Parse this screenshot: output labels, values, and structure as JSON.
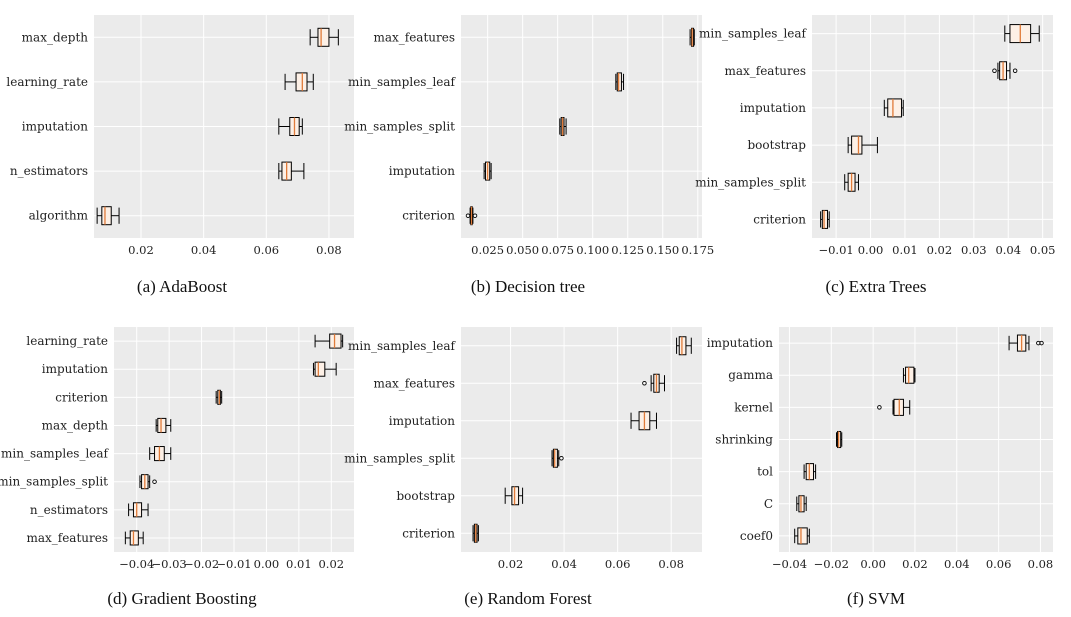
{
  "figure": {
    "panels": [
      {
        "caption": "(a) AdaBoost"
      },
      {
        "caption": "(b) Decision tree"
      },
      {
        "caption": "(c) Extra Trees"
      },
      {
        "caption": "(d) Gradient Boosting"
      },
      {
        "caption": "(e) Random Forest"
      },
      {
        "caption": "(f) SVM"
      }
    ]
  },
  "chart_data": [
    {
      "type": "boxplot",
      "orientation": "horizontal",
      "title": "(a) AdaBoost",
      "xlim": [
        0.005,
        0.088
      ],
      "xticks": [
        0.02,
        0.04,
        0.06,
        0.08
      ],
      "xtick_labels": [
        "0.02",
        "0.04",
        "0.06",
        "0.08"
      ],
      "grid": true,
      "categories": [
        "max_depth",
        "learning_rate",
        "imputation",
        "n_estimators",
        "algorithm"
      ],
      "boxes": [
        {
          "min": 0.074,
          "q1": 0.0765,
          "median": 0.0775,
          "q3": 0.08,
          "max": 0.083,
          "outliers": []
        },
        {
          "min": 0.066,
          "q1": 0.0695,
          "median": 0.0715,
          "q3": 0.073,
          "max": 0.075,
          "outliers": []
        },
        {
          "min": 0.064,
          "q1": 0.0675,
          "median": 0.069,
          "q3": 0.0705,
          "max": 0.0715,
          "outliers": []
        },
        {
          "min": 0.064,
          "q1": 0.065,
          "median": 0.0665,
          "q3": 0.068,
          "max": 0.072,
          "outliers": []
        },
        {
          "min": 0.006,
          "q1": 0.0075,
          "median": 0.0085,
          "q3": 0.0105,
          "max": 0.013,
          "outliers": []
        }
      ]
    },
    {
      "type": "boxplot",
      "orientation": "horizontal",
      "title": "(b) Decision tree",
      "xlim": [
        0.006,
        0.178
      ],
      "xticks": [
        0.025,
        0.05,
        0.075,
        0.1,
        0.125,
        0.15,
        0.175
      ],
      "xtick_labels": [
        "0.025",
        "0.050",
        "0.075",
        "0.100",
        "0.125",
        "0.150",
        "0.175"
      ],
      "grid": true,
      "categories": [
        "max_features",
        "min_samples_leaf",
        "min_samples_split",
        "imputation",
        "criterion"
      ],
      "boxes": [
        {
          "min": 0.1695,
          "q1": 0.1705,
          "median": 0.171,
          "q3": 0.172,
          "max": 0.1725,
          "outliers": []
        },
        {
          "min": 0.1165,
          "q1": 0.1175,
          "median": 0.1185,
          "q3": 0.1205,
          "max": 0.122,
          "outliers": []
        },
        {
          "min": 0.0765,
          "q1": 0.0775,
          "median": 0.0785,
          "q3": 0.0795,
          "max": 0.081,
          "outliers": []
        },
        {
          "min": 0.0225,
          "q1": 0.0235,
          "median": 0.025,
          "q3": 0.0265,
          "max": 0.0275,
          "outliers": []
        },
        {
          "min": 0.0125,
          "q1": 0.013,
          "median": 0.0135,
          "q3": 0.014,
          "max": 0.0145,
          "outliers": [
            0.011,
            0.016
          ]
        }
      ]
    },
    {
      "type": "boxplot",
      "orientation": "horizontal",
      "title": "(c) Extra Trees",
      "xlim": [
        -0.017,
        0.053
      ],
      "xticks": [
        -0.01,
        0.0,
        0.01,
        0.02,
        0.03,
        0.04,
        0.05
      ],
      "xtick_labels": [
        "−0.01",
        "0.00",
        "0.01",
        "0.02",
        "0.03",
        "0.04",
        "0.05"
      ],
      "grid": true,
      "categories": [
        "min_samples_leaf",
        "max_features",
        "imputation",
        "bootstrap",
        "min_samples_split",
        "criterion"
      ],
      "boxes": [
        {
          "min": 0.039,
          "q1": 0.0405,
          "median": 0.0435,
          "q3": 0.0465,
          "max": 0.049,
          "outliers": []
        },
        {
          "min": 0.037,
          "q1": 0.0375,
          "median": 0.0385,
          "q3": 0.0395,
          "max": 0.0405,
          "outliers": [
            0.036,
            0.042
          ]
        },
        {
          "min": 0.004,
          "q1": 0.005,
          "median": 0.0065,
          "q3": 0.009,
          "max": 0.0095,
          "outliers": []
        },
        {
          "min": -0.0065,
          "q1": -0.0055,
          "median": -0.0035,
          "q3": -0.0025,
          "max": 0.002,
          "outliers": []
        },
        {
          "min": -0.0075,
          "q1": -0.0065,
          "median": -0.0055,
          "q3": -0.0045,
          "max": -0.0035,
          "outliers": []
        },
        {
          "min": -0.0145,
          "q1": -0.014,
          "median": -0.0135,
          "q3": -0.0125,
          "max": -0.012,
          "outliers": []
        }
      ]
    },
    {
      "type": "boxplot",
      "orientation": "horizontal",
      "title": "(d) Gradient Boosting",
      "xlim": [
        -0.047,
        0.027
      ],
      "xticks": [
        -0.04,
        -0.03,
        -0.02,
        -0.01,
        0.0,
        0.01,
        0.02
      ],
      "xtick_labels": [
        "−0.04",
        "−0.03",
        "−0.02",
        "−0.01",
        "0.00",
        "0.01",
        "0.02"
      ],
      "grid": true,
      "categories": [
        "learning_rate",
        "imputation",
        "criterion",
        "max_depth",
        "min_samples_leaf",
        "min_samples_split",
        "n_estimators",
        "max_features"
      ],
      "boxes": [
        {
          "min": 0.015,
          "q1": 0.0195,
          "median": 0.021,
          "q3": 0.023,
          "max": 0.0235,
          "outliers": []
        },
        {
          "min": 0.0145,
          "q1": 0.015,
          "median": 0.016,
          "q3": 0.018,
          "max": 0.0215,
          "outliers": []
        },
        {
          "min": -0.0155,
          "q1": -0.015,
          "median": -0.0145,
          "q3": -0.0142,
          "max": -0.0138,
          "outliers": []
        },
        {
          "min": -0.034,
          "q1": -0.0335,
          "median": -0.0325,
          "q3": -0.031,
          "max": -0.0295,
          "outliers": []
        },
        {
          "min": -0.036,
          "q1": -0.0345,
          "median": -0.033,
          "q3": -0.0315,
          "max": -0.0295,
          "outliers": []
        },
        {
          "min": -0.039,
          "q1": -0.0385,
          "median": -0.0375,
          "q3": -0.0365,
          "max": -0.036,
          "outliers": [
            -0.0345
          ]
        },
        {
          "min": -0.0425,
          "q1": -0.041,
          "median": -0.04,
          "q3": -0.0385,
          "max": -0.0365,
          "outliers": []
        },
        {
          "min": -0.0435,
          "q1": -0.042,
          "median": -0.041,
          "q3": -0.0395,
          "max": -0.038,
          "outliers": []
        }
      ]
    },
    {
      "type": "boxplot",
      "orientation": "horizontal",
      "title": "(e) Random Forest",
      "xlim": [
        0.0015,
        0.0915
      ],
      "xticks": [
        0.02,
        0.04,
        0.06,
        0.08
      ],
      "xtick_labels": [
        "0.02",
        "0.04",
        "0.06",
        "0.08"
      ],
      "grid": true,
      "categories": [
        "min_samples_leaf",
        "max_features",
        "imputation",
        "min_samples_split",
        "bootstrap",
        "criterion"
      ],
      "boxes": [
        {
          "min": 0.082,
          "q1": 0.083,
          "median": 0.084,
          "q3": 0.0855,
          "max": 0.0875,
          "outliers": []
        },
        {
          "min": 0.0725,
          "q1": 0.0735,
          "median": 0.0745,
          "q3": 0.0755,
          "max": 0.0775,
          "outliers": [
            0.07
          ]
        },
        {
          "min": 0.065,
          "q1": 0.068,
          "median": 0.07,
          "q3": 0.072,
          "max": 0.0745,
          "outliers": []
        },
        {
          "min": 0.0355,
          "q1": 0.036,
          "median": 0.0365,
          "q3": 0.0375,
          "max": 0.038,
          "outliers": [
            0.039
          ]
        },
        {
          "min": 0.018,
          "q1": 0.0205,
          "median": 0.0215,
          "q3": 0.023,
          "max": 0.0245,
          "outliers": []
        },
        {
          "min": 0.006,
          "q1": 0.0065,
          "median": 0.007,
          "q3": 0.0075,
          "max": 0.008,
          "outliers": []
        }
      ]
    },
    {
      "type": "boxplot",
      "orientation": "horizontal",
      "title": "(f) SVM",
      "xlim": [
        -0.045,
        0.086
      ],
      "xticks": [
        -0.04,
        -0.02,
        0.0,
        0.02,
        0.04,
        0.06,
        0.08
      ],
      "xtick_labels": [
        "−0.04",
        "−0.02",
        "0.00",
        "0.02",
        "0.04",
        "0.06",
        "0.08"
      ],
      "grid": true,
      "categories": [
        "imputation",
        "gamma",
        "kernel",
        "shrinking",
        "tol",
        "C",
        "coef0"
      ],
      "boxes": [
        {
          "min": 0.065,
          "q1": 0.069,
          "median": 0.071,
          "q3": 0.073,
          "max": 0.0745,
          "outliers": [
            0.079,
            0.0805
          ]
        },
        {
          "min": 0.0145,
          "q1": 0.0155,
          "median": 0.017,
          "q3": 0.0195,
          "max": 0.02,
          "outliers": []
        },
        {
          "min": 0.0095,
          "q1": 0.01,
          "median": 0.0125,
          "q3": 0.0145,
          "max": 0.0175,
          "outliers": [
            0.003
          ]
        },
        {
          "min": -0.0175,
          "q1": -0.017,
          "median": -0.0165,
          "q3": -0.0155,
          "max": -0.015,
          "outliers": []
        },
        {
          "min": -0.033,
          "q1": -0.032,
          "median": -0.0305,
          "q3": -0.0285,
          "max": -0.0275,
          "outliers": []
        },
        {
          "min": -0.0365,
          "q1": -0.0355,
          "median": -0.0345,
          "q3": -0.033,
          "max": -0.032,
          "outliers": []
        },
        {
          "min": -0.0375,
          "q1": -0.036,
          "median": -0.0345,
          "q3": -0.0315,
          "max": -0.0305,
          "outliers": []
        }
      ]
    }
  ]
}
